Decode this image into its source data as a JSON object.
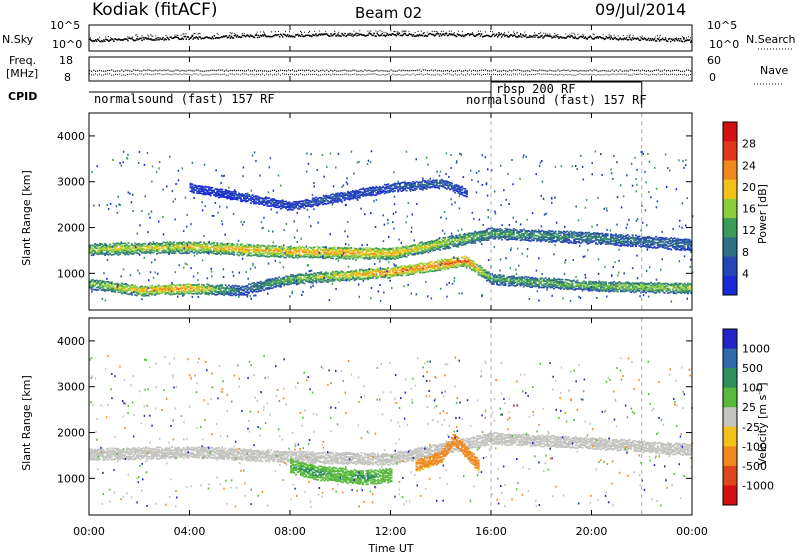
{
  "header": {
    "station": "Kodiak (fitACF)",
    "beam": "Beam 02",
    "date": "09/Jul/2014"
  },
  "top_panels": {
    "nsky_label": "N.Sky",
    "nsky_ticks": [
      "10^5",
      "10^0"
    ],
    "nsearch_label": "N.Search",
    "nsearch_ticks": [
      "10^5",
      "10^0"
    ],
    "freq_label_line1": "Freq.",
    "freq_label_line2": "[MHz]",
    "freq_ticks": [
      "18",
      "8"
    ],
    "nave_label": "Nave",
    "nave_ticks": [
      "60",
      "0"
    ],
    "cpid_label": "CPID",
    "cpid_segments": [
      {
        "label": "normalsound (fast) 157 RF",
        "start_hour": 0,
        "end_hour": 16
      },
      {
        "label": "rbsp 200 RF",
        "start_hour": 16,
        "end_hour": 22
      },
      {
        "label": "normalsound (fast) 157 RF",
        "start_hour": 16,
        "end_hour": 22
      }
    ]
  },
  "x_axis": {
    "label": "Time UT",
    "ticks": [
      "00:00",
      "04:00",
      "08:00",
      "12:00",
      "16:00",
      "20:00",
      "00:00"
    ]
  },
  "power_panel": {
    "ylabel": "Slant Range [km]",
    "yticks": [
      "4000",
      "3000",
      "2000",
      "1000"
    ],
    "colorbar_label": "Power [dB]",
    "colorbar_ticks": [
      "28",
      "24",
      "20",
      "16",
      "12",
      "8",
      "4"
    ],
    "colors": [
      "#1a2bd6",
      "#2747b8",
      "#2f6f86",
      "#3c9a5a",
      "#8ccd3c",
      "#f2c21b",
      "#f08a1e",
      "#e0361c",
      "#d40f12"
    ]
  },
  "velocity_panel": {
    "ylabel": "Slant Range [km]",
    "yticks": [
      "4000",
      "3000",
      "2000",
      "1000"
    ],
    "colorbar_label": "Velocity [m s^-1]",
    "colorbar_ticks": [
      "1000",
      "500",
      "100",
      "25",
      "-25",
      "-100",
      "-500",
      "-1000"
    ],
    "colors": [
      "#2424c8",
      "#2e6aa8",
      "#2f8f5a",
      "#58b93c",
      "#c3c3c0",
      "#f2c21b",
      "#f08a1e",
      "#e0461c",
      "#d40f12"
    ]
  },
  "chart_data": {
    "type": "heatmap",
    "x_unit": "hour UT",
    "xlim": [
      0,
      24
    ],
    "ylim": [
      200,
      4500
    ],
    "power_bands": [
      {
        "hours": [
          0,
          4,
          8,
          12,
          16,
          20,
          24
        ],
        "range_km": [
          1550,
          1600,
          1500,
          1450,
          1900,
          1800,
          1650
        ],
        "width_km": 260,
        "power_db": [
          18,
          20,
          22,
          22,
          14,
          12,
          10
        ]
      },
      {
        "hours": [
          0,
          2,
          4,
          6,
          8,
          12,
          15,
          16,
          20,
          24
        ],
        "range_km": [
          800,
          650,
          700,
          650,
          900,
          1050,
          1300,
          900,
          750,
          700
        ],
        "width_km": 220,
        "power_db": [
          16,
          22,
          24,
          10,
          16,
          24,
          26,
          14,
          16,
          18
        ]
      },
      {
        "hours": [
          4,
          6,
          8,
          10,
          12,
          14,
          15
        ],
        "range_km": [
          2900,
          2700,
          2500,
          2700,
          2900,
          3000,
          2800
        ],
        "width_km": 180,
        "power_db": [
          6,
          6,
          8,
          8,
          8,
          10,
          8
        ]
      }
    ],
    "velocity_bands": [
      {
        "hours": [
          0,
          4,
          8,
          12,
          16,
          20,
          24
        ],
        "range_km": [
          1550,
          1600,
          1500,
          1450,
          1900,
          1800,
          1650
        ],
        "width_km": 260,
        "velocity_ms": [
          0,
          0,
          0,
          0,
          0,
          0,
          0
        ]
      },
      {
        "hours": [
          8,
          9,
          10,
          11,
          12
        ],
        "range_km": [
          1300,
          1150,
          1100,
          1050,
          1100
        ],
        "width_km": 300,
        "velocity_ms": [
          120,
          150,
          100,
          150,
          100
        ]
      },
      {
        "hours": [
          13,
          14,
          14.5,
          15,
          15.5
        ],
        "range_km": [
          1300,
          1500,
          1900,
          1600,
          1300
        ],
        "width_km": 250,
        "velocity_ms": [
          -150,
          -200,
          -300,
          -250,
          -150
        ]
      }
    ]
  }
}
